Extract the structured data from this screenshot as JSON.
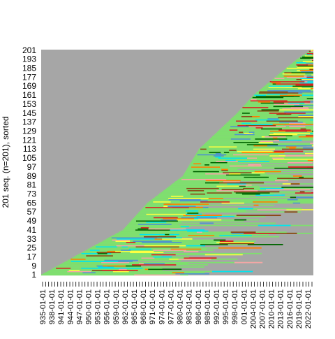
{
  "chart_data": {
    "type": "sequence-index-plot",
    "title": "",
    "xlabel": "",
    "ylabel": "201 seq. (n=201), sorted",
    "background_state_color": "#a6a6a6",
    "y_tick_labels": [
      "1",
      "9",
      "17",
      "25",
      "33",
      "41",
      "49",
      "57",
      "65",
      "73",
      "81",
      "89",
      "97",
      "105",
      "113",
      "121",
      "129",
      "137",
      "145",
      "153",
      "161",
      "169",
      "177",
      "185",
      "193",
      "201"
    ],
    "x_tick_labels": [
      "935-01-01",
      "938-01-01",
      "941-01-01",
      "944-01-01",
      "947-01-01",
      "950-01-01",
      "953-01-01",
      "956-01-01",
      "959-01-01",
      "962-01-01",
      "965-01-01",
      "968-01-01",
      "971-01-01",
      "974-01-01",
      "977-01-01",
      "980-01-01",
      "983-01-01",
      "986-01-01",
      "989-01-01",
      "992-01-01",
      "995-01-01",
      "998-01-01",
      "001-01-01",
      "2004-01-01",
      "2007-01-01",
      "2010-01-01",
      "2013-01-01",
      "2016-01-01",
      "2019-01-01",
      "2022-01-01"
    ],
    "n_sequences": 201,
    "n_x_minor_ticks": 90,
    "state_colors": [
      "#7fdf6f",
      "#006400",
      "#d92121",
      "#ffff40",
      "#00e5ee",
      "#ff7f00",
      "#f4a6a6",
      "#4f94cd",
      "#8b4513"
    ],
    "diagonal_front": [
      [
        1,
        0.0
      ],
      [
        17,
        0.12
      ],
      [
        41,
        0.3
      ],
      [
        65,
        0.39
      ],
      [
        89,
        0.52
      ],
      [
        113,
        0.58
      ],
      [
        129,
        0.65
      ],
      [
        145,
        0.72
      ],
      [
        161,
        0.78
      ],
      [
        177,
        0.86
      ],
      [
        193,
        0.94
      ],
      [
        201,
        0.99
      ]
    ]
  }
}
